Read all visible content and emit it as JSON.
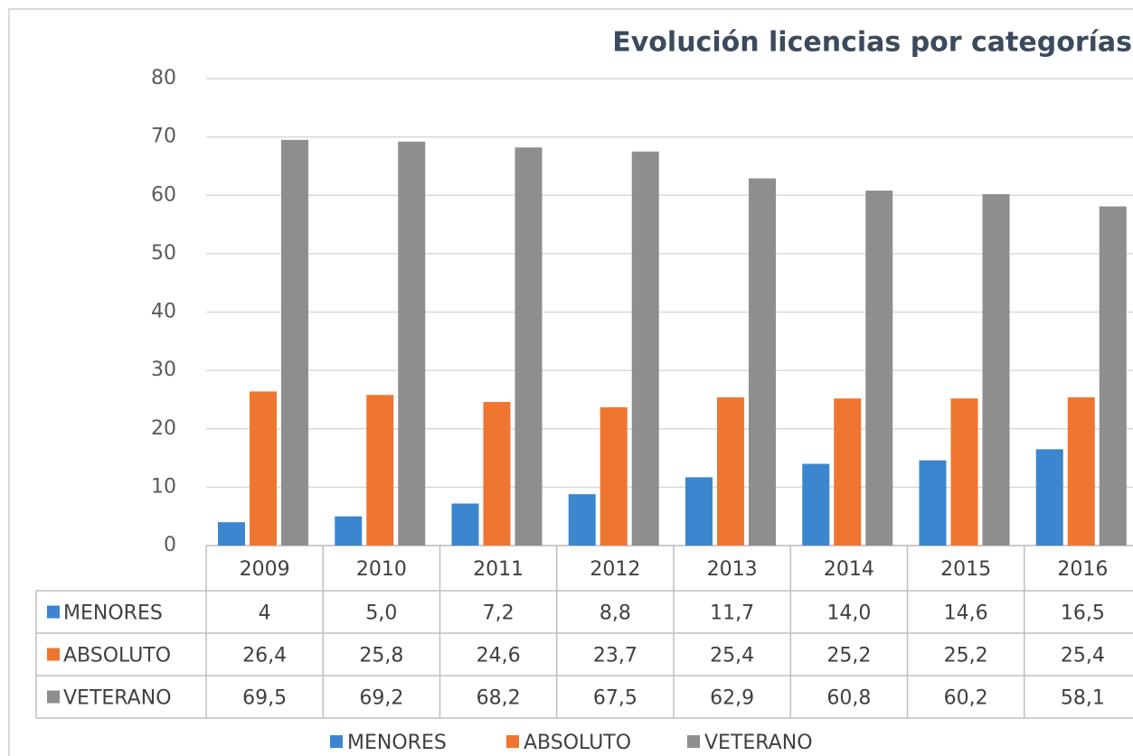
{
  "chart_data": {
    "type": "bar",
    "title": "Evolución licencias por categorías",
    "categories": [
      "2009",
      "2010",
      "2011",
      "2012",
      "2013",
      "2014",
      "2015",
      "2016"
    ],
    "series": [
      {
        "name": "MENORES",
        "color": "#3b86cf",
        "values": [
          4,
          5.0,
          7.2,
          8.8,
          11.7,
          14.0,
          14.6,
          16.5
        ],
        "value_labels": [
          "4",
          "5,0",
          "7,2",
          "8,8",
          "11,7",
          "14,0",
          "14,6",
          "16,5"
        ]
      },
      {
        "name": "ABSOLUTO",
        "color": "#ee7630",
        "values": [
          26.4,
          25.8,
          24.6,
          23.7,
          25.4,
          25.2,
          25.2,
          25.4
        ],
        "value_labels": [
          "26,4",
          "25,8",
          "24,6",
          "23,7",
          "25,4",
          "25,2",
          "25,2",
          "25,4"
        ]
      },
      {
        "name": "VETERANO",
        "color": "#8e8e8e",
        "values": [
          69.5,
          69.2,
          68.2,
          67.5,
          62.9,
          60.8,
          60.2,
          58.1
        ],
        "value_labels": [
          "69,5",
          "69,2",
          "68,2",
          "67,5",
          "62,9",
          "60,8",
          "60,2",
          "58,1"
        ]
      }
    ],
    "ylim": [
      0,
      80
    ],
    "yticks": [
      0,
      10,
      20,
      30,
      40,
      50,
      60,
      70,
      80
    ],
    "grid": true,
    "legend": "bottom"
  }
}
